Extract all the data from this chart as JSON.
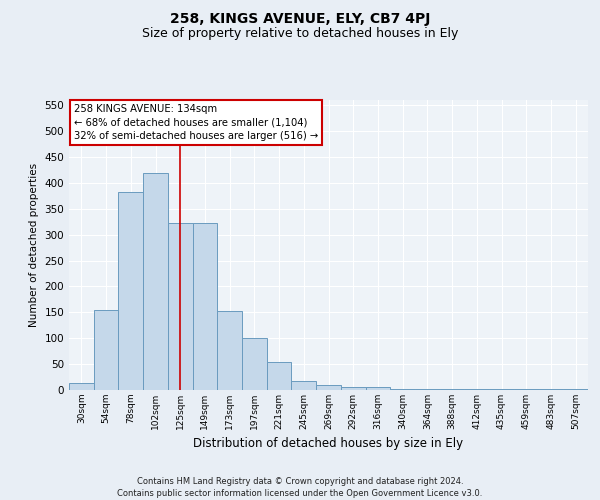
{
  "title1": "258, KINGS AVENUE, ELY, CB7 4PJ",
  "title2": "Size of property relative to detached houses in Ely",
  "xlabel": "Distribution of detached houses by size in Ely",
  "ylabel": "Number of detached properties",
  "categories": [
    "30sqm",
    "54sqm",
    "78sqm",
    "102sqm",
    "125sqm",
    "149sqm",
    "173sqm",
    "197sqm",
    "221sqm",
    "245sqm",
    "269sqm",
    "292sqm",
    "316sqm",
    "340sqm",
    "364sqm",
    "388sqm",
    "412sqm",
    "435sqm",
    "459sqm",
    "483sqm",
    "507sqm"
  ],
  "values": [
    13,
    155,
    383,
    420,
    322,
    322,
    152,
    100,
    55,
    18,
    10,
    5,
    5,
    2,
    2,
    2,
    2,
    2,
    2,
    2,
    2
  ],
  "bar_color": "#c5d8ea",
  "bar_edge_color": "#6a9bbf",
  "vline_position": 4.0,
  "vline_color": "#cc0000",
  "annotation_text": "258 KINGS AVENUE: 134sqm\n← 68% of detached houses are smaller (1,104)\n32% of semi-detached houses are larger (516) →",
  "annotation_box_color": "white",
  "annotation_box_edge_color": "#cc0000",
  "ylim": [
    0,
    560
  ],
  "yticks": [
    0,
    50,
    100,
    150,
    200,
    250,
    300,
    350,
    400,
    450,
    500,
    550
  ],
  "footer": "Contains HM Land Registry data © Crown copyright and database right 2024.\nContains public sector information licensed under the Open Government Licence v3.0.",
  "bg_color": "#e8eef5",
  "plot_bg_color": "#eef3f8",
  "grid_color": "#ffffff",
  "title1_fontsize": 10,
  "title2_fontsize": 9
}
